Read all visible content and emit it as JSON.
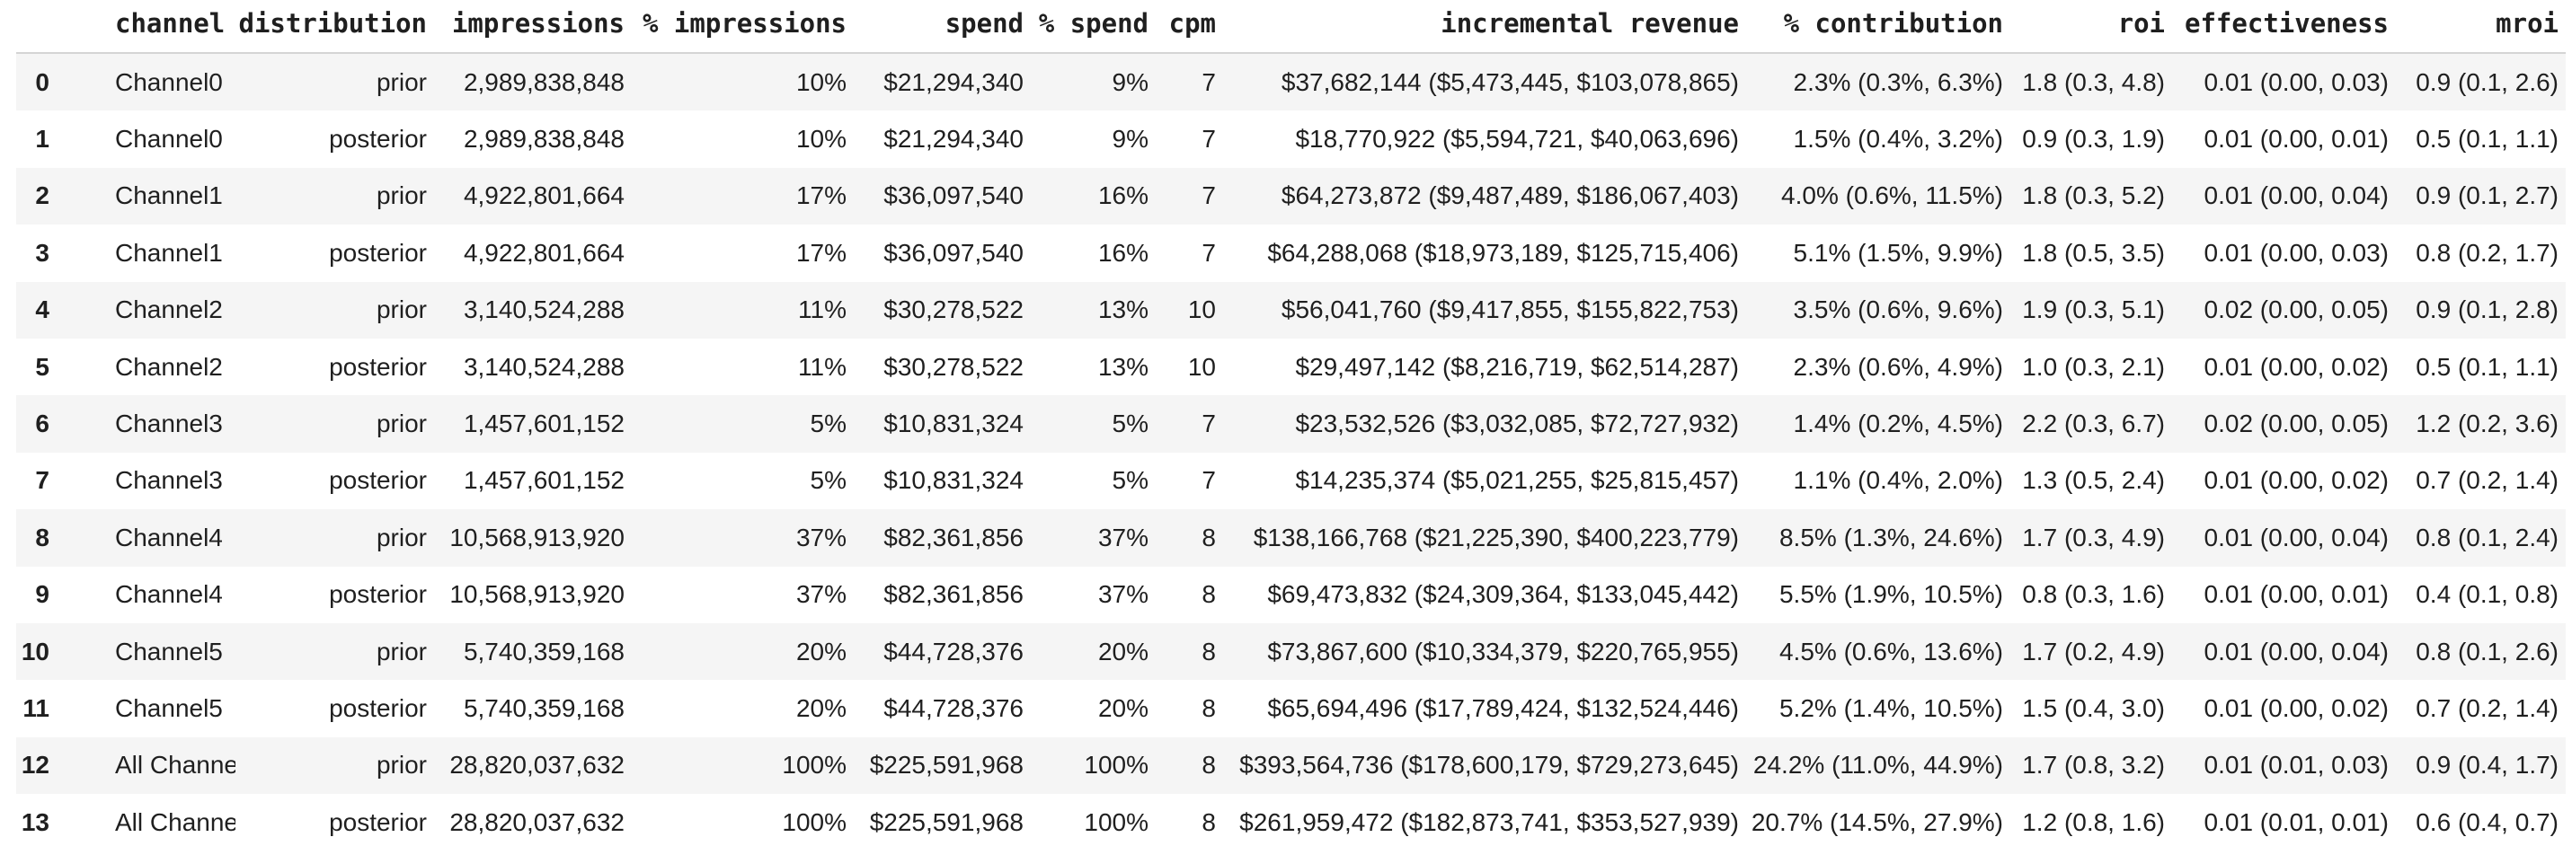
{
  "colors": {
    "text": "#1f1f1f",
    "stripe": "#f5f5f5",
    "header_border": "#d4d4d4",
    "page_background": "#ffffff"
  },
  "chart_data": {
    "type": "table",
    "columns": [
      "",
      "channel",
      "distribution",
      "impressions",
      "% impressions",
      "spend",
      "% spend",
      "cpm",
      "incremental revenue",
      "% contribution",
      "roi",
      "effectiveness",
      "mroi"
    ],
    "rows": [
      [
        "0",
        "Channel0",
        "prior",
        "2,989,838,848",
        "10%",
        "$21,294,340",
        "9%",
        "7",
        "$37,682,144 ($5,473,445, $103,078,865)",
        "2.3% (0.3%, 6.3%)",
        "1.8 (0.3, 4.8)",
        "0.01 (0.00, 0.03)",
        "0.9 (0.1, 2.6)"
      ],
      [
        "1",
        "Channel0",
        "posterior",
        "2,989,838,848",
        "10%",
        "$21,294,340",
        "9%",
        "7",
        "$18,770,922 ($5,594,721, $40,063,696)",
        "1.5% (0.4%, 3.2%)",
        "0.9 (0.3, 1.9)",
        "0.01 (0.00, 0.01)",
        "0.5 (0.1, 1.1)"
      ],
      [
        "2",
        "Channel1",
        "prior",
        "4,922,801,664",
        "17%",
        "$36,097,540",
        "16%",
        "7",
        "$64,273,872 ($9,487,489, $186,067,403)",
        "4.0% (0.6%, 11.5%)",
        "1.8 (0.3, 5.2)",
        "0.01 (0.00, 0.04)",
        "0.9 (0.1, 2.7)"
      ],
      [
        "3",
        "Channel1",
        "posterior",
        "4,922,801,664",
        "17%",
        "$36,097,540",
        "16%",
        "7",
        "$64,288,068 ($18,973,189, $125,715,406)",
        "5.1% (1.5%, 9.9%)",
        "1.8 (0.5, 3.5)",
        "0.01 (0.00, 0.03)",
        "0.8 (0.2, 1.7)"
      ],
      [
        "4",
        "Channel2",
        "prior",
        "3,140,524,288",
        "11%",
        "$30,278,522",
        "13%",
        "10",
        "$56,041,760 ($9,417,855, $155,822,753)",
        "3.5% (0.6%, 9.6%)",
        "1.9 (0.3, 5.1)",
        "0.02 (0.00, 0.05)",
        "0.9 (0.1, 2.8)"
      ],
      [
        "5",
        "Channel2",
        "posterior",
        "3,140,524,288",
        "11%",
        "$30,278,522",
        "13%",
        "10",
        "$29,497,142 ($8,216,719, $62,514,287)",
        "2.3% (0.6%, 4.9%)",
        "1.0 (0.3, 2.1)",
        "0.01 (0.00, 0.02)",
        "0.5 (0.1, 1.1)"
      ],
      [
        "6",
        "Channel3",
        "prior",
        "1,457,601,152",
        "5%",
        "$10,831,324",
        "5%",
        "7",
        "$23,532,526 ($3,032,085, $72,727,932)",
        "1.4% (0.2%, 4.5%)",
        "2.2 (0.3, 6.7)",
        "0.02 (0.00, 0.05)",
        "1.2 (0.2, 3.6)"
      ],
      [
        "7",
        "Channel3",
        "posterior",
        "1,457,601,152",
        "5%",
        "$10,831,324",
        "5%",
        "7",
        "$14,235,374 ($5,021,255, $25,815,457)",
        "1.1% (0.4%, 2.0%)",
        "1.3 (0.5, 2.4)",
        "0.01 (0.00, 0.02)",
        "0.7 (0.2, 1.4)"
      ],
      [
        "8",
        "Channel4",
        "prior",
        "10,568,913,920",
        "37%",
        "$82,361,856",
        "37%",
        "8",
        "$138,166,768 ($21,225,390, $400,223,779)",
        "8.5% (1.3%, 24.6%)",
        "1.7 (0.3, 4.9)",
        "0.01 (0.00, 0.04)",
        "0.8 (0.1, 2.4)"
      ],
      [
        "9",
        "Channel4",
        "posterior",
        "10,568,913,920",
        "37%",
        "$82,361,856",
        "37%",
        "8",
        "$69,473,832 ($24,309,364, $133,045,442)",
        "5.5% (1.9%, 10.5%)",
        "0.8 (0.3, 1.6)",
        "0.01 (0.00, 0.01)",
        "0.4 (0.1, 0.8)"
      ],
      [
        "10",
        "Channel5",
        "prior",
        "5,740,359,168",
        "20%",
        "$44,728,376",
        "20%",
        "8",
        "$73,867,600 ($10,334,379, $220,765,955)",
        "4.5% (0.6%, 13.6%)",
        "1.7 (0.2, 4.9)",
        "0.01 (0.00, 0.04)",
        "0.8 (0.1, 2.6)"
      ],
      [
        "11",
        "Channel5",
        "posterior",
        "5,740,359,168",
        "20%",
        "$44,728,376",
        "20%",
        "8",
        "$65,694,496 ($17,789,424, $132,524,446)",
        "5.2% (1.4%, 10.5%)",
        "1.5 (0.4, 3.0)",
        "0.01 (0.00, 0.02)",
        "0.7 (0.2, 1.4)"
      ],
      [
        "12",
        "All Channels",
        "prior",
        "28,820,037,632",
        "100%",
        "$225,591,968",
        "100%",
        "8",
        "$393,564,736 ($178,600,179, $729,273,645)",
        "24.2% (11.0%, 44.9%)",
        "1.7 (0.8, 3.2)",
        "0.01 (0.01, 0.03)",
        "0.9 (0.4, 1.7)"
      ],
      [
        "13",
        "All Channels",
        "posterior",
        "28,820,037,632",
        "100%",
        "$225,591,968",
        "100%",
        "8",
        "$261,959,472 ($182,873,741, $353,527,939)",
        "20.7% (14.5%, 27.9%)",
        "1.2 (0.8, 1.6)",
        "0.01 (0.01, 0.01)",
        "0.6 (0.4, 0.7)"
      ]
    ]
  }
}
